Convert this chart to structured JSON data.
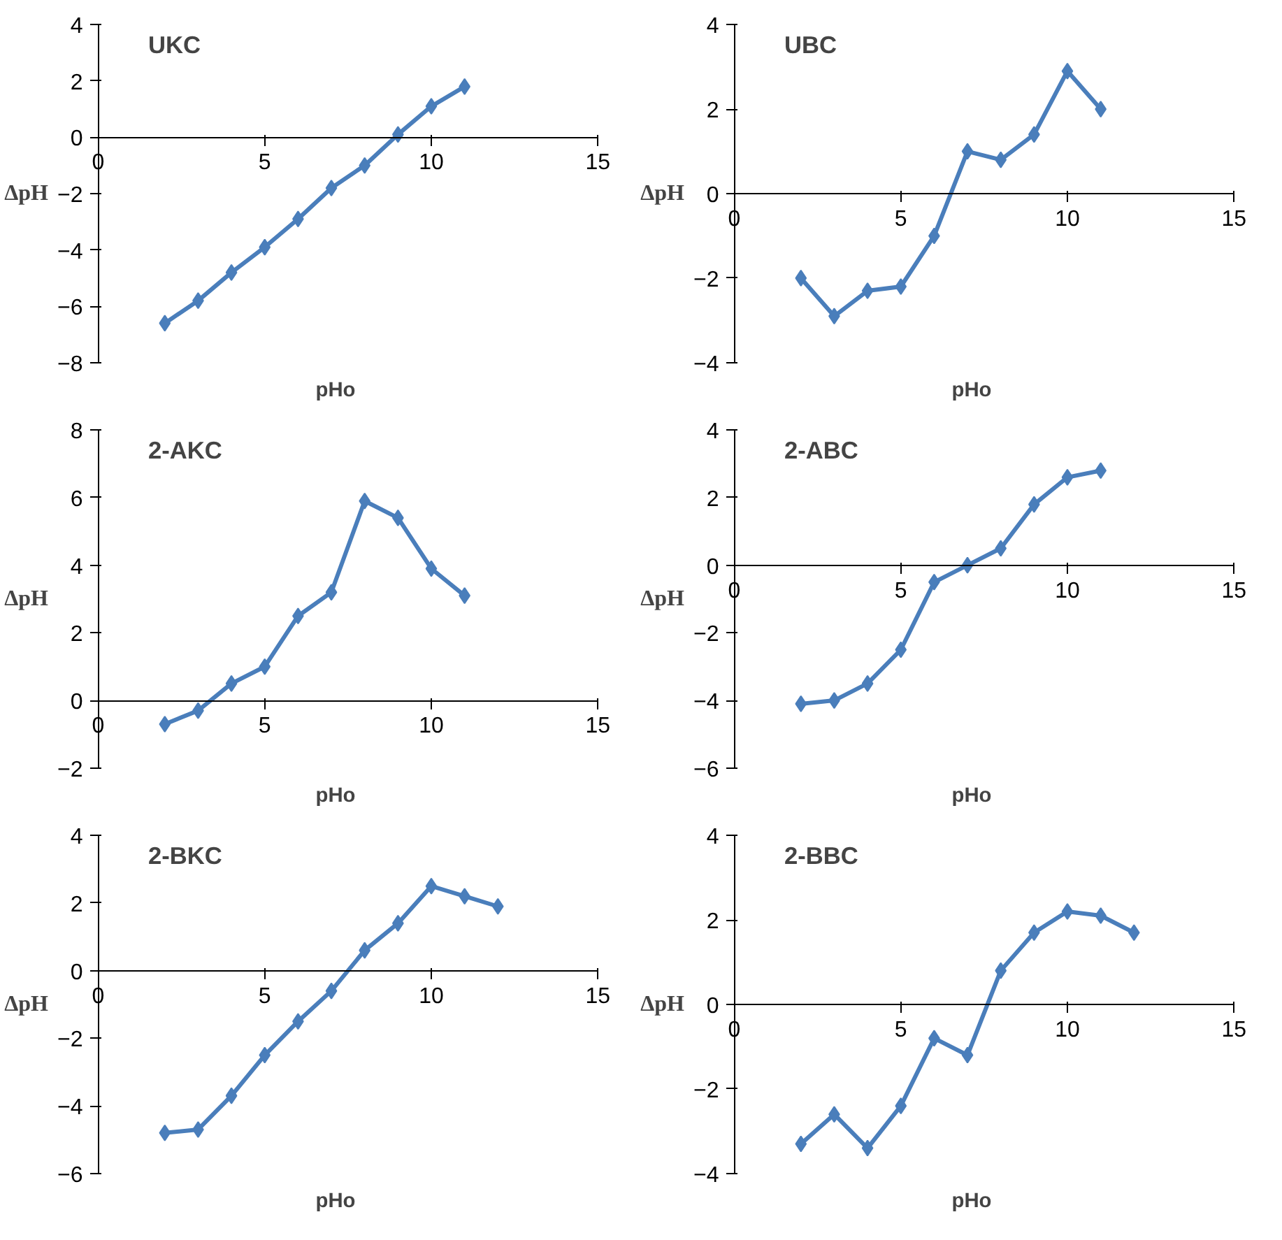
{
  "chart_data": [
    {
      "type": "line",
      "title": "UKC",
      "xlabel": "pHo",
      "ylabel": "ΔpH",
      "marker": "diamond",
      "grid": false,
      "xlim": [
        0,
        15
      ],
      "xticks": [
        0,
        5,
        10,
        15
      ],
      "ylim": [
        -8,
        4
      ],
      "yticks": [
        -8,
        -6,
        -4,
        -2,
        0,
        2,
        4
      ],
      "series": [
        {
          "color": "#4a7ebb",
          "x": [
            2,
            3,
            4,
            5,
            6,
            7,
            8,
            9,
            10,
            11
          ],
          "values": [
            -6.6,
            -5.8,
            -4.8,
            -3.9,
            -2.9,
            -1.8,
            -1.0,
            0.1,
            1.1,
            1.8
          ]
        }
      ]
    },
    {
      "type": "line",
      "title": "UBC",
      "xlabel": "pHo",
      "ylabel": "ΔpH",
      "marker": "diamond",
      "grid": false,
      "xlim": [
        0,
        15
      ],
      "xticks": [
        0,
        5,
        10,
        15
      ],
      "ylim": [
        -4,
        4
      ],
      "yticks": [
        -4,
        -2,
        0,
        2,
        4
      ],
      "series": [
        {
          "color": "#4a7ebb",
          "x": [
            2,
            3,
            4,
            5,
            6,
            7,
            8,
            9,
            10,
            11
          ],
          "values": [
            -2.0,
            -2.9,
            -2.3,
            -2.2,
            -1.0,
            1.0,
            0.8,
            1.4,
            2.9,
            2.0
          ]
        }
      ]
    },
    {
      "type": "line",
      "title": "2-AKC",
      "xlabel": "pHo",
      "ylabel": "ΔpH",
      "marker": "diamond",
      "grid": false,
      "xlim": [
        0,
        15
      ],
      "xticks": [
        0,
        5,
        10,
        15
      ],
      "ylim": [
        -2,
        8
      ],
      "yticks": [
        -2,
        0,
        2,
        4,
        6,
        8
      ],
      "series": [
        {
          "color": "#4a7ebb",
          "x": [
            2,
            3,
            4,
            5,
            6,
            7,
            8,
            9,
            10,
            11
          ],
          "values": [
            -0.7,
            -0.3,
            0.5,
            1.0,
            2.5,
            3.2,
            5.9,
            5.4,
            3.9,
            3.1
          ]
        }
      ]
    },
    {
      "type": "line",
      "title": "2-ABC",
      "xlabel": "pHo",
      "ylabel": "ΔpH",
      "marker": "diamond",
      "grid": false,
      "xlim": [
        0,
        15
      ],
      "xticks": [
        0,
        5,
        10,
        15
      ],
      "ylim": [
        -6,
        4
      ],
      "yticks": [
        -6,
        -4,
        -2,
        0,
        2,
        4
      ],
      "series": [
        {
          "color": "#4a7ebb",
          "x": [
            2,
            3,
            4,
            5,
            6,
            7,
            8,
            9,
            10,
            11
          ],
          "values": [
            -4.1,
            -4.0,
            -3.5,
            -2.5,
            -0.5,
            0.0,
            0.5,
            1.8,
            2.6,
            2.8
          ]
        }
      ]
    },
    {
      "type": "line",
      "title": "2-BKC",
      "xlabel": "pHo",
      "ylabel": "ΔpH",
      "marker": "diamond",
      "grid": false,
      "xlim": [
        0,
        15
      ],
      "xticks": [
        0,
        5,
        10,
        15
      ],
      "ylim": [
        -6,
        4
      ],
      "yticks": [
        -6,
        -4,
        -2,
        0,
        2,
        4
      ],
      "series": [
        {
          "color": "#4a7ebb",
          "x": [
            2,
            3,
            4,
            5,
            6,
            7,
            8,
            9,
            10,
            11,
            12
          ],
          "values": [
            -4.8,
            -4.7,
            -3.7,
            -2.5,
            -1.5,
            -0.6,
            0.6,
            1.4,
            2.5,
            2.2,
            1.9
          ]
        }
      ]
    },
    {
      "type": "line",
      "title": "2-BBC",
      "xlabel": "pHo",
      "ylabel": "ΔpH",
      "marker": "diamond",
      "grid": false,
      "xlim": [
        0,
        15
      ],
      "xticks": [
        0,
        5,
        10,
        15
      ],
      "ylim": [
        -4,
        4
      ],
      "yticks": [
        -4,
        -2,
        0,
        2,
        4
      ],
      "series": [
        {
          "color": "#4a7ebb",
          "x": [
            2,
            3,
            4,
            5,
            6,
            7,
            8,
            9,
            10,
            11,
            12
          ],
          "values": [
            -3.3,
            -2.6,
            -3.4,
            -2.4,
            -0.8,
            -1.2,
            0.8,
            1.7,
            2.2,
            2.1,
            1.7
          ]
        }
      ]
    }
  ]
}
